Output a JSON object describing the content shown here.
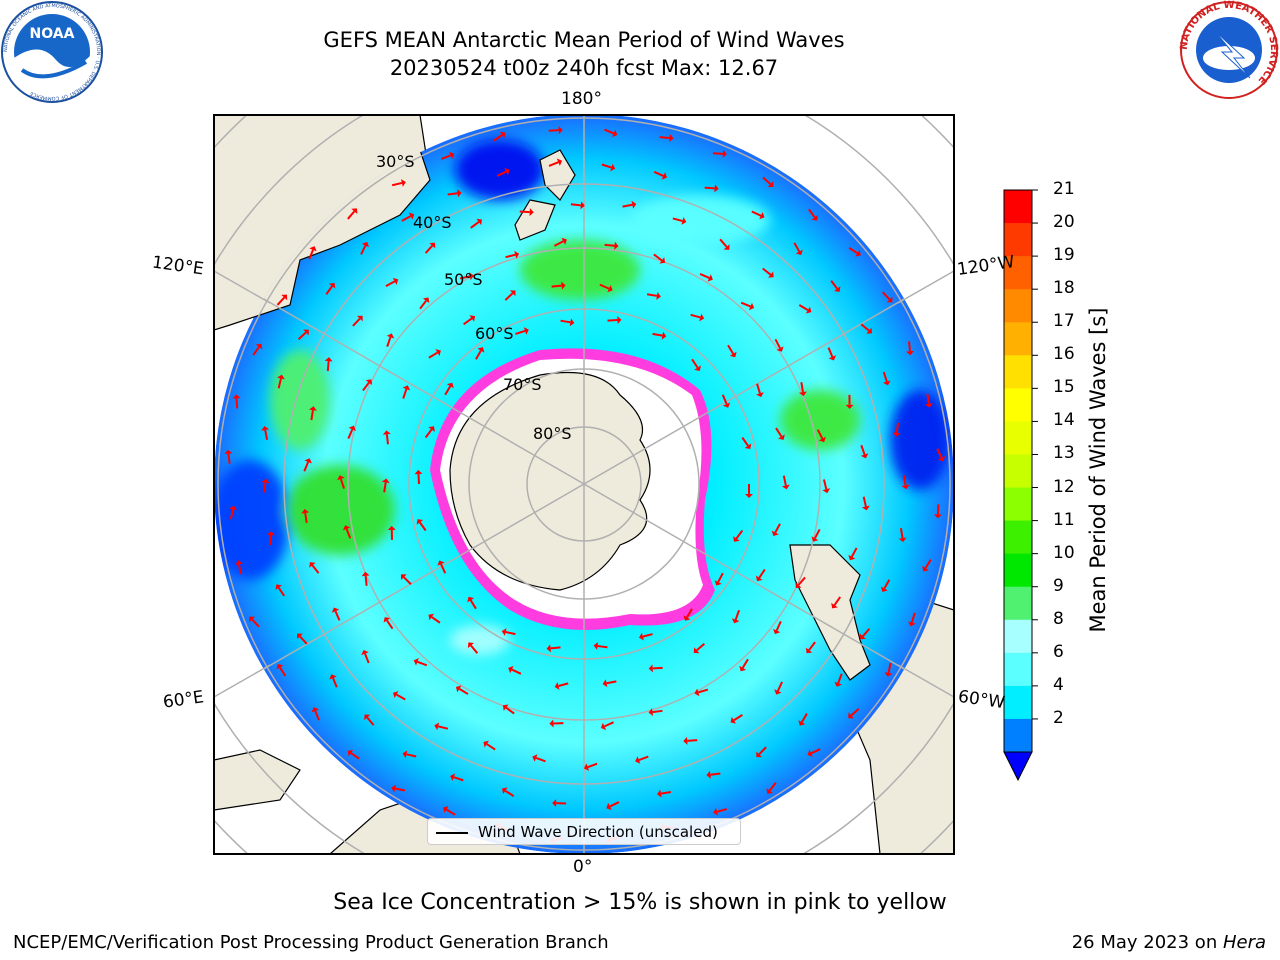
{
  "header": {
    "title_line1": "GEFS MEAN Antarctic Mean Period of Wind Waves",
    "title_line2": "20230524 t00z 240h fcst   Max: 12.67"
  },
  "logos": {
    "left": "NOAA",
    "left_ring_text": "NATIONAL OCEANIC AND ATMOSPHERIC ADMINISTRATION · U.S. DEPARTMENT OF COMMERCE",
    "right_ring_text": "NATIONAL WEATHER SERVICE"
  },
  "map": {
    "projection": "south-polar-stereographic",
    "lon_labels": {
      "top": "180°",
      "bottom": "0°",
      "upper_left": "120°E",
      "upper_right": "120°W",
      "lower_left": "60°E",
      "lower_right": "60°W"
    },
    "lat_labels": [
      "30°S",
      "40°S",
      "50°S",
      "60°S",
      "70°S",
      "80°S"
    ],
    "legend_label": "Wind Wave Direction (unscaled)",
    "colors": {
      "land": "#efebdc",
      "coastline": "#000000",
      "grid": "#b0b0b0",
      "arrow": "#ff0000",
      "ice": "#ff3ce0"
    }
  },
  "colorbar": {
    "title": "Mean Period of Wind Waves [s]",
    "ticks": [
      "21",
      "20",
      "19",
      "18",
      "17",
      "16",
      "15",
      "14",
      "13",
      "12",
      "11",
      "10",
      "9",
      "8",
      "6",
      "4",
      "2"
    ],
    "colors_top_to_bottom": [
      "#ff0000",
      "#ff3a00",
      "#ff6000",
      "#ff8a00",
      "#ffb000",
      "#ffe000",
      "#ffff00",
      "#e8ff00",
      "#c8ff00",
      "#8cff00",
      "#3cf000",
      "#00e800",
      "#50f070",
      "#a8ffff",
      "#5cffff",
      "#00eeff",
      "#0080ff"
    ],
    "extend_color": "#0000ff"
  },
  "caption": "Sea Ice Concentration > 15% is shown in pink to yellow",
  "footer": {
    "left": "NCEP/EMC/Verification Post Processing Product Generation Branch",
    "right_prefix": "26 May 2023 on ",
    "right_italic": "Hera"
  }
}
